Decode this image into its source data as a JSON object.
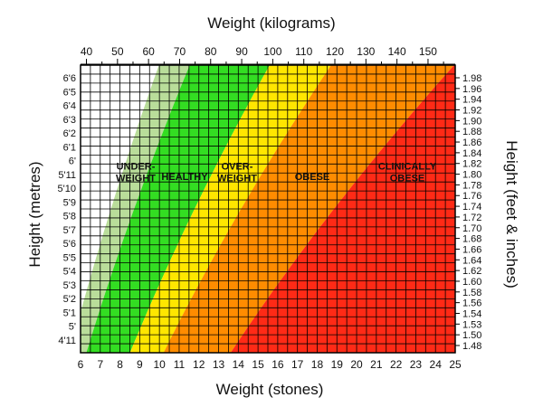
{
  "chart_data": {
    "type": "area",
    "top_axis": {
      "label": "Weight (kilograms)",
      "ticks": [
        40,
        50,
        60,
        70,
        80,
        90,
        100,
        110,
        120,
        130,
        140,
        150
      ]
    },
    "bottom_axis": {
      "label": "Weight (stones)",
      "range": [
        6,
        25
      ],
      "ticks": [
        6,
        7,
        8,
        9,
        10,
        11,
        12,
        13,
        14,
        15,
        16,
        17,
        18,
        19,
        20,
        21,
        22,
        23,
        24,
        25
      ]
    },
    "left_axis": {
      "label": "Height (metres)",
      "ticks": [
        "6'6",
        "6'5",
        "6'4",
        "6'3",
        "6'2",
        "6'1",
        "6'",
        "5'11",
        "5'10",
        "5'9",
        "5'8",
        "5'7",
        "5'6",
        "5'5",
        "5'4",
        "5'3",
        "5'2",
        "5'1",
        "5'",
        "4'11"
      ]
    },
    "right_axis": {
      "label": "Height (feet & inches)",
      "ticks": [
        "1.98",
        "1.96",
        "1.94",
        "1.92",
        "1.90",
        "1.88",
        "1.86",
        "1.84",
        "1.82",
        "1.80",
        "1.78",
        "1.76",
        "1.74",
        "1.72",
        "1.70",
        "1.68",
        "1.66",
        "1.64",
        "1.62",
        "1.60",
        "1.58",
        "1.56",
        "1.54",
        "1.53",
        "1.50",
        "1.48"
      ]
    },
    "height_range_m": [
      1.47,
      1.99
    ],
    "grid": true,
    "zones": [
      {
        "name": "UNDER-WEIGHT",
        "label_lines": [
          "UNDER-",
          "WEIGHT"
        ],
        "color": "#ffffff",
        "bmi_range": [
          0,
          16
        ]
      },
      {
        "name": "UNDER-WEIGHT (borderline)",
        "label_lines": [],
        "color": "#b9dd9a",
        "bmi_range": [
          16,
          18.5
        ]
      },
      {
        "name": "HEALTHY",
        "label_lines": [
          "HEALTHY"
        ],
        "color": "#33dd22",
        "bmi_range": [
          18.5,
          25
        ]
      },
      {
        "name": "OVER-WEIGHT",
        "label_lines": [
          "OVER-",
          "WEIGHT"
        ],
        "color": "#ffe600",
        "bmi_range": [
          25,
          30
        ]
      },
      {
        "name": "OBESE",
        "label_lines": [
          "OBESE"
        ],
        "color": "#ff8c00",
        "bmi_range": [
          30,
          40
        ]
      },
      {
        "name": "CLINICALLY OBESE",
        "label_lines": [
          "CLINICALLY",
          "OBESE"
        ],
        "color": "#ff2a16",
        "bmi_range": [
          40,
          200
        ]
      }
    ]
  }
}
